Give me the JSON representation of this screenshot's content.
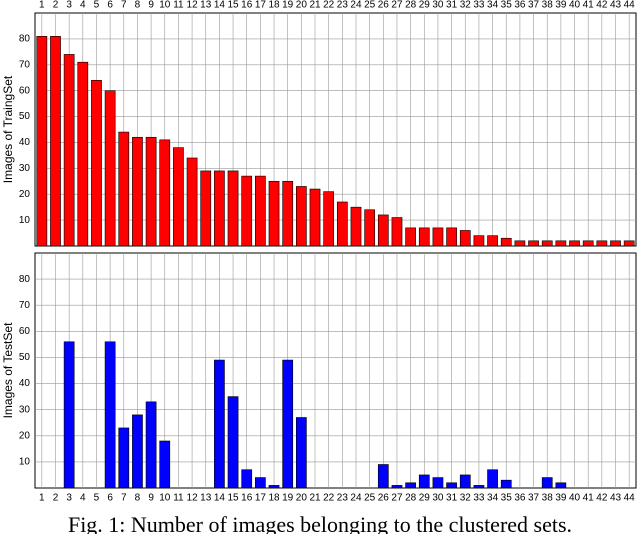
{
  "chart_data": [
    {
      "type": "bar",
      "ylabel": "Images of TraingSet",
      "color": "#ff0000",
      "xaxis_position": "top",
      "categories": [
        "1",
        "2",
        "3",
        "4",
        "5",
        "6",
        "7",
        "8",
        "9",
        "10",
        "11",
        "12",
        "13",
        "14",
        "15",
        "16",
        "17",
        "18",
        "19",
        "20",
        "21",
        "22",
        "23",
        "24",
        "25",
        "26",
        "27",
        "28",
        "29",
        "30",
        "31",
        "32",
        "33",
        "34",
        "35",
        "36",
        "37",
        "38",
        "39",
        "40",
        "41",
        "42",
        "43",
        "44"
      ],
      "values": [
        81,
        81,
        74,
        71,
        64,
        60,
        44,
        42,
        42,
        41,
        38,
        34,
        29,
        29,
        29,
        27,
        27,
        25,
        25,
        23,
        22,
        21,
        17,
        15,
        14,
        12,
        11,
        7,
        7,
        7,
        7,
        6,
        4,
        4,
        3,
        2,
        2,
        2,
        2,
        2,
        2,
        2,
        2,
        2
      ],
      "ylim": [
        0,
        90
      ],
      "yticks": [
        10,
        20,
        30,
        40,
        50,
        60,
        70,
        80
      ],
      "grid": true
    },
    {
      "type": "bar",
      "ylabel": "Images of TestSet",
      "color": "#0000ff",
      "xaxis_position": "bottom",
      "categories": [
        "1",
        "2",
        "3",
        "4",
        "5",
        "6",
        "7",
        "8",
        "9",
        "10",
        "11",
        "12",
        "13",
        "14",
        "15",
        "16",
        "17",
        "18",
        "19",
        "20",
        "21",
        "22",
        "23",
        "24",
        "25",
        "26",
        "27",
        "28",
        "29",
        "30",
        "31",
        "32",
        "33",
        "34",
        "35",
        "36",
        "37",
        "38",
        "39",
        "40",
        "41",
        "42",
        "43",
        "44"
      ],
      "values": [
        0,
        0,
        56,
        0,
        0,
        56,
        23,
        28,
        33,
        18,
        0,
        0,
        0,
        49,
        35,
        7,
        4,
        1,
        49,
        27,
        0,
        0,
        0,
        0,
        0,
        9,
        1,
        2,
        5,
        4,
        2,
        5,
        1,
        7,
        3,
        0,
        0,
        4,
        2,
        0,
        0,
        0,
        0,
        0
      ],
      "ylim": [
        0,
        90
      ],
      "yticks": [
        10,
        20,
        30,
        40,
        50,
        60,
        70,
        80
      ],
      "grid": true
    }
  ],
  "caption": "Fig. 1: Number of images belonging to the clustered sets."
}
